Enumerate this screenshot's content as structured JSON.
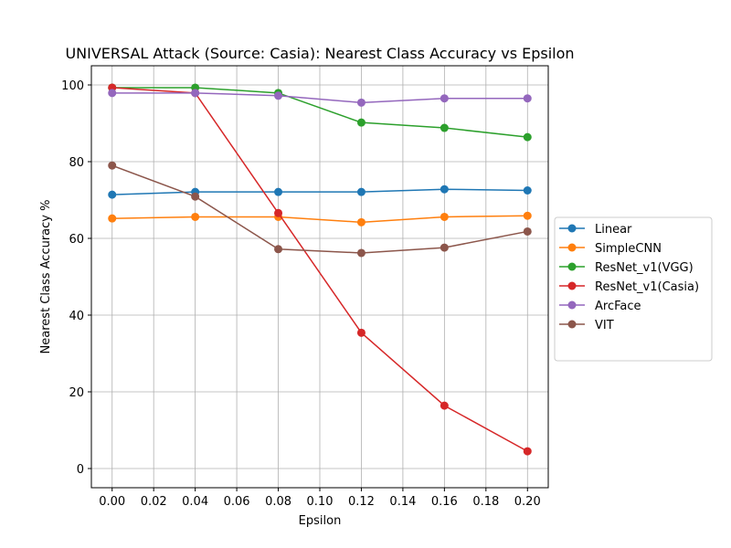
{
  "chart_data": {
    "type": "line",
    "title": "UNIVERSAL Attack (Source: Casia): Nearest Class Accuracy vs Epsilon",
    "xlabel": "Epsilon",
    "ylabel": "Nearest Class Accuracy %",
    "x": [
      0.0,
      0.04,
      0.08,
      0.12,
      0.16,
      0.2
    ],
    "xlim": [
      -0.01,
      0.21
    ],
    "ylim": [
      -5,
      105
    ],
    "xticks": [
      "0.00",
      "0.02",
      "0.04",
      "0.06",
      "0.08",
      "0.10",
      "0.12",
      "0.14",
      "0.16",
      "0.18",
      "0.20"
    ],
    "xtick_values": [
      0.0,
      0.02,
      0.04,
      0.06,
      0.08,
      0.1,
      0.12,
      0.14,
      0.16,
      0.18,
      0.2
    ],
    "yticks": [
      "0",
      "20",
      "40",
      "60",
      "80",
      "100"
    ],
    "ytick_values": [
      0,
      20,
      40,
      60,
      80,
      100
    ],
    "grid": true,
    "legend_position": "outside-right",
    "series": [
      {
        "name": "Linear",
        "color": "#1f77b4",
        "values": [
          71.4,
          72.1,
          72.1,
          72.1,
          72.8,
          72.5
        ]
      },
      {
        "name": "SimpleCNN",
        "color": "#ff7f0e",
        "values": [
          65.2,
          65.6,
          65.6,
          64.2,
          65.6,
          65.9
        ]
      },
      {
        "name": "ResNet_v1(VGG)",
        "color": "#2ca02c",
        "values": [
          99.3,
          99.3,
          97.9,
          90.2,
          88.8,
          86.4
        ]
      },
      {
        "name": "ResNet_v1(Casia)",
        "color": "#d62728",
        "values": [
          99.3,
          97.9,
          66.6,
          35.4,
          16.4,
          4.5
        ]
      },
      {
        "name": "ArcFace",
        "color": "#9467bd",
        "values": [
          97.9,
          97.9,
          97.2,
          95.4,
          96.5,
          96.5
        ]
      },
      {
        "name": "VIT",
        "color": "#8c564b",
        "values": [
          79.0,
          70.9,
          57.2,
          56.2,
          57.6,
          61.8
        ]
      }
    ]
  }
}
